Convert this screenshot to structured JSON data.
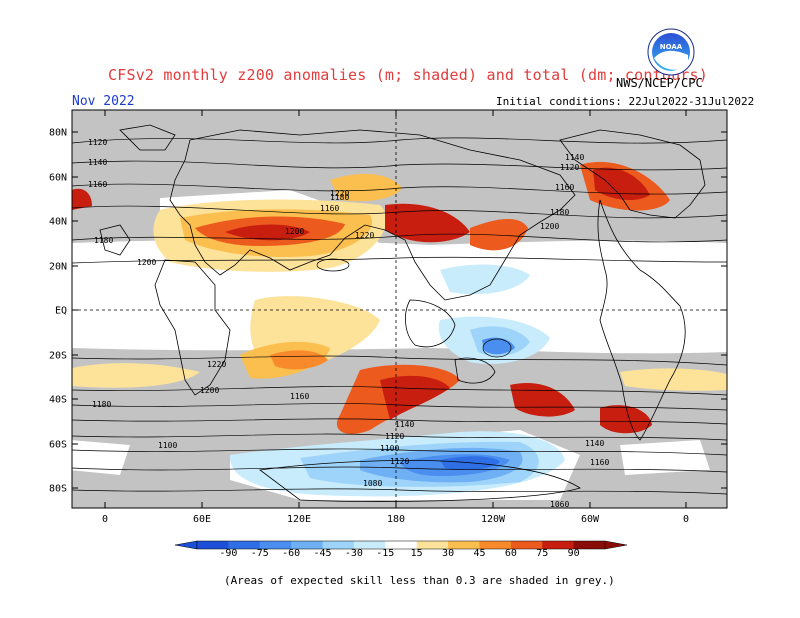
{
  "title": "CFSv2 monthly z200 anomalies (m; shaded) and total (dm; contours)",
  "agency": "NWS/NCEP/CPC",
  "month": "Nov 2022",
  "initial_conditions": "Initial conditions: 22Jul2022-31Jul2022",
  "logo_text": "NOAA",
  "footnote": "(Areas of expected skill less than 0.3 are shaded in grey.)",
  "lat_labels": [
    "80N",
    "60N",
    "40N",
    "20N",
    "EQ",
    "20S",
    "40S",
    "60S",
    "80S"
  ],
  "lon_labels": [
    "0",
    "60E",
    "120E",
    "180",
    "120W",
    "60W",
    "0"
  ],
  "colorbar": {
    "values": [
      "-90",
      "-75",
      "-60",
      "-45",
      "-30",
      "-15",
      "15",
      "30",
      "45",
      "60",
      "75",
      "90"
    ],
    "colors": [
      "#1d4fd8",
      "#2f6fe6",
      "#4a8eef",
      "#6fb0f4",
      "#9fd4fa",
      "#c9ecfc",
      "#ffffff",
      "#fde29a",
      "#fbbf50",
      "#f98a2c",
      "#ec5a1e",
      "#c81e10",
      "#8a0c08"
    ]
  },
  "contour_labels": [
    "1120",
    "1140",
    "1160",
    "1180",
    "1200",
    "1220",
    "1220",
    "1200",
    "1180",
    "1160",
    "1140",
    "1120",
    "1100",
    "1080",
    "1060",
    "1160",
    "1180",
    "1200",
    "1220",
    "1200",
    "1180",
    "1160",
    "1140",
    "1120",
    "1100",
    "1120",
    "1140",
    "1160"
  ],
  "colors": {
    "title": "#e23c3c",
    "month": "#1c3ccf",
    "grey": "#c0c0c0"
  }
}
